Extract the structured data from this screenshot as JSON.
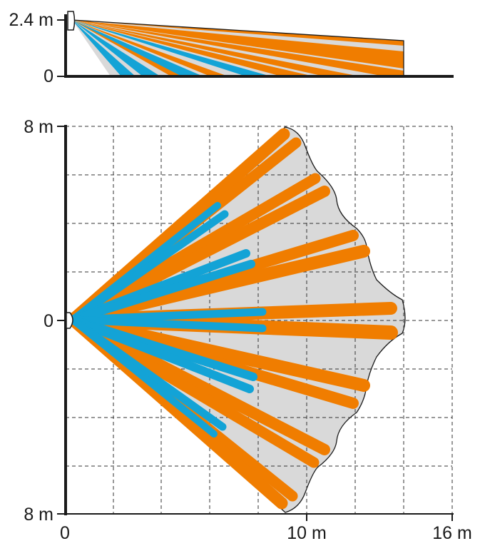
{
  "side_view": {
    "height_label": "2.4 m",
    "floor_label": "0"
  },
  "top_view": {
    "top_label": "8 m",
    "center_label": "0",
    "bottom_label": "8 m"
  },
  "x_axis": {
    "origin_label": "0",
    "mid_label": "10 m",
    "end_label": "16 m"
  },
  "colors": {
    "long_range": "#f07d00",
    "short_range": "#13a3d6",
    "coverage": "#d9d9d9",
    "axis": "#1a1a1a"
  }
}
